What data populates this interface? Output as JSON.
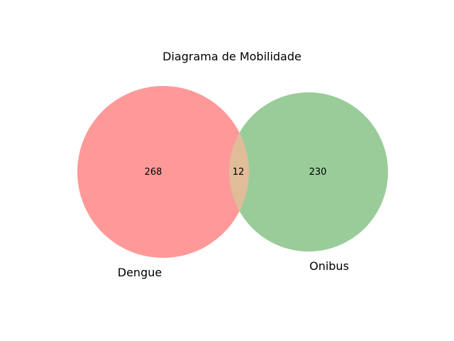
{
  "diagram": {
    "title": "Diagrama de Mobilidade",
    "sets": [
      {
        "key": "A",
        "label": "Dengue",
        "count": "268",
        "color": "#ff9999"
      },
      {
        "key": "B",
        "label": "Onibus",
        "count": "230",
        "color": "#99cc99"
      }
    ],
    "intersection": {
      "count": "12",
      "color": "#e0bc99"
    }
  }
}
